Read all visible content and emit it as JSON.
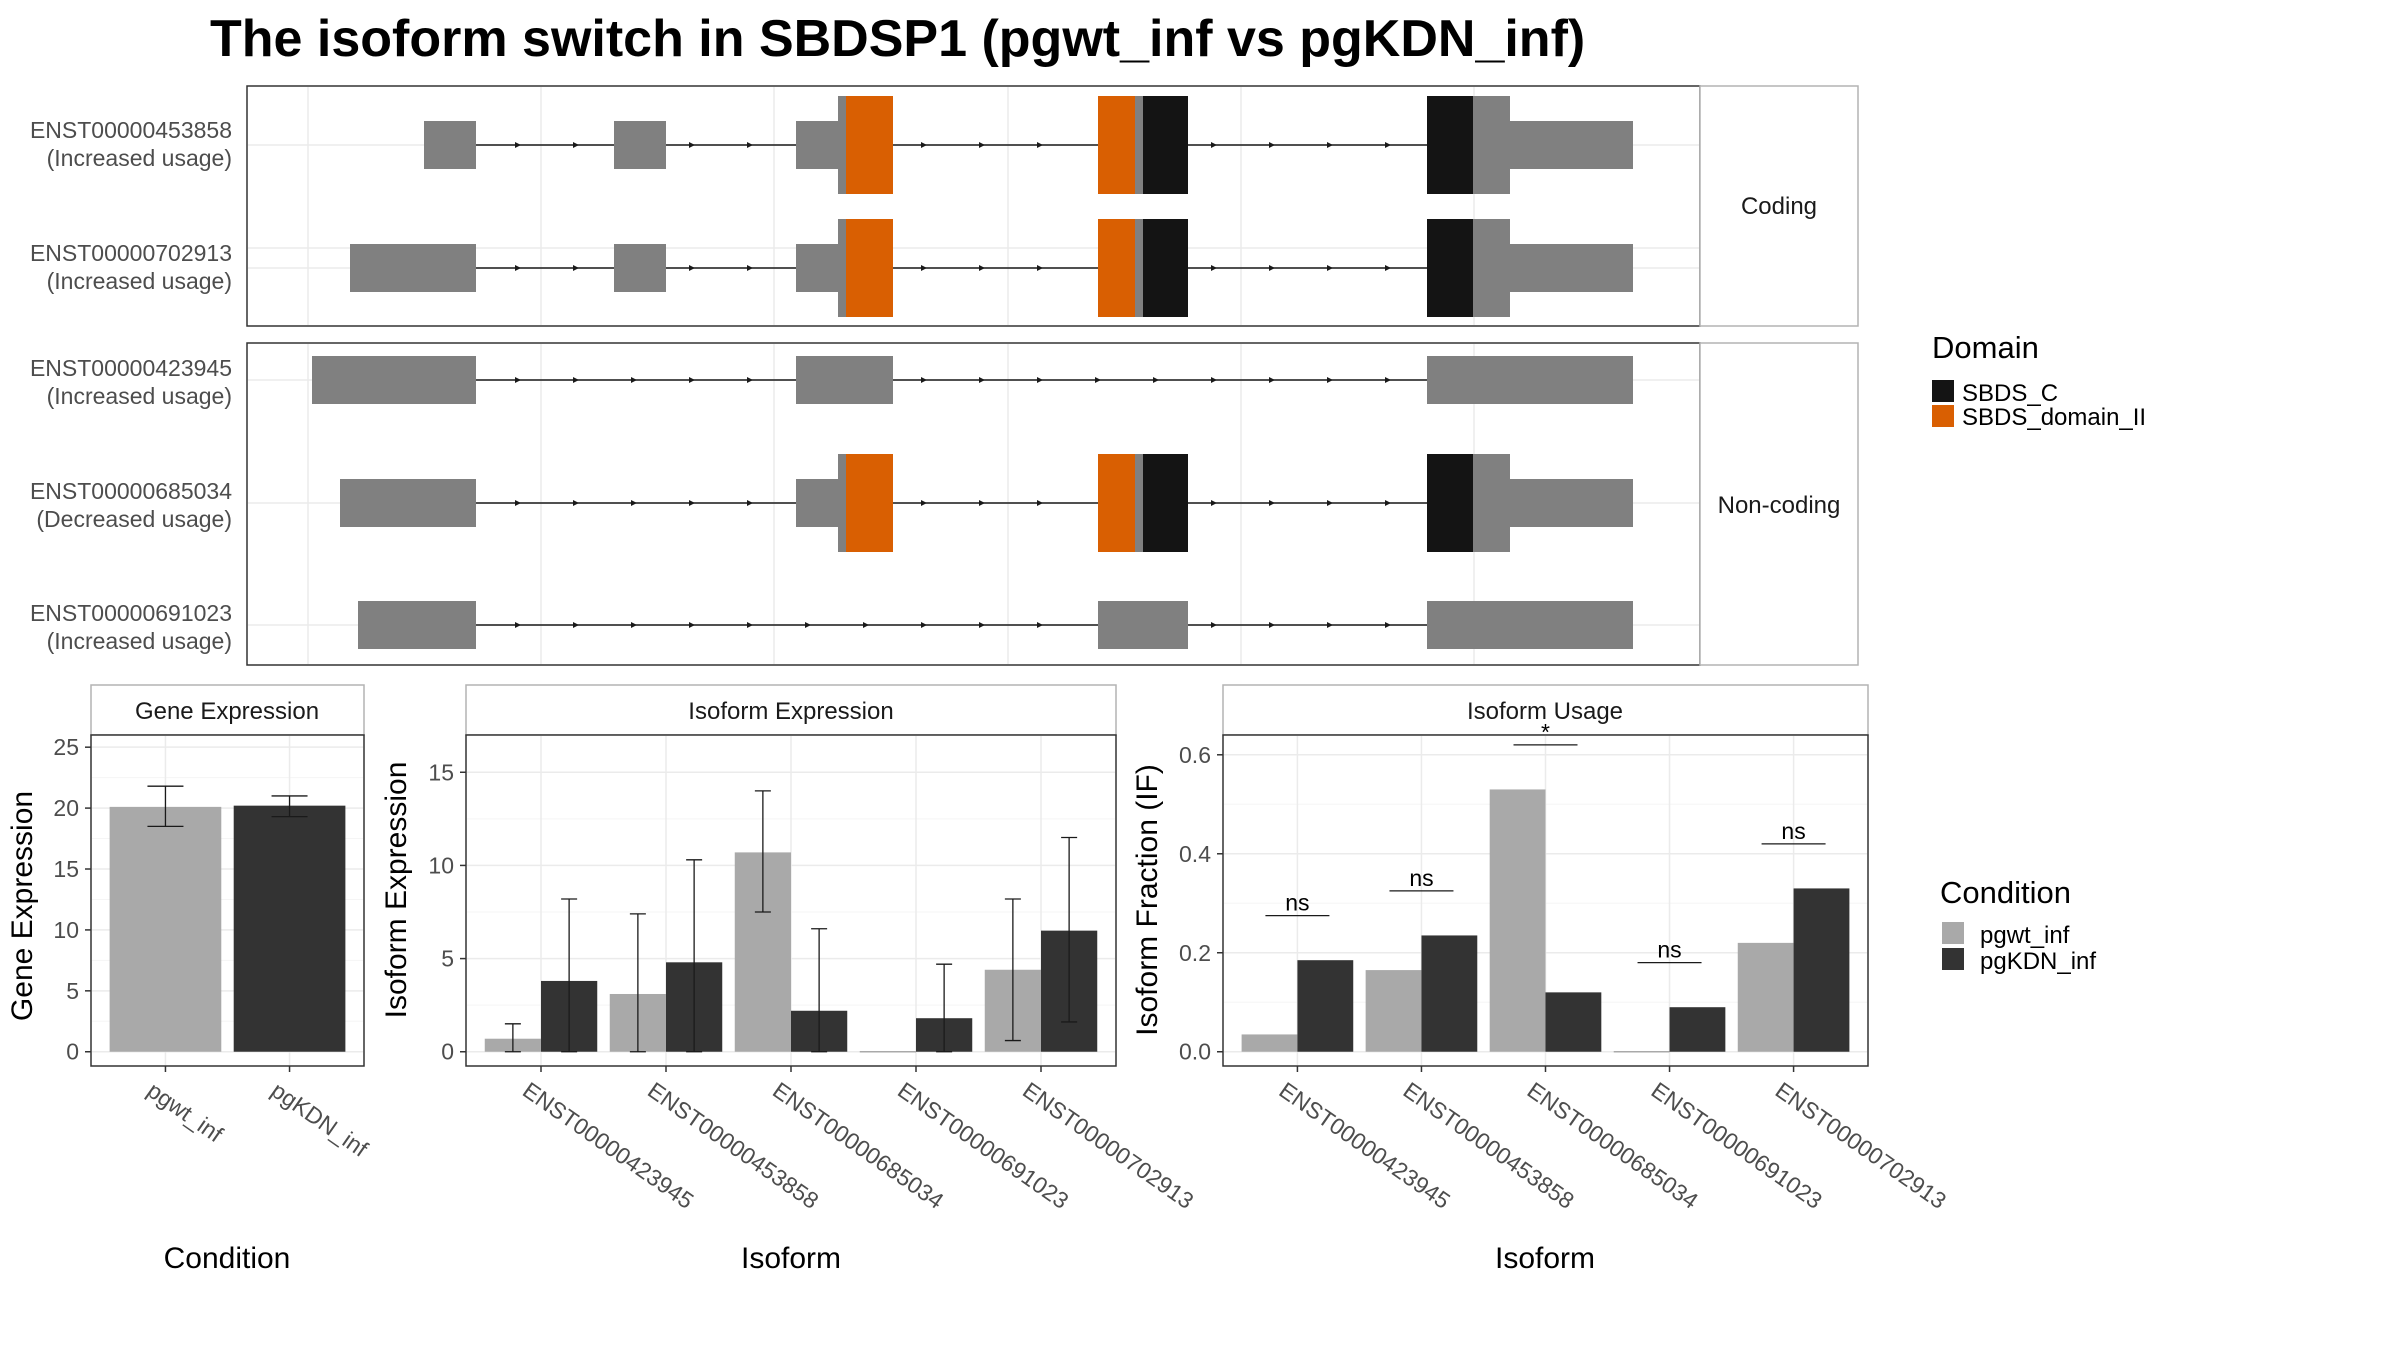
{
  "title": "The isoform switch in SBDSP1 (pgwt_inf vs pgKDN_inf)",
  "colors": {
    "exon": "#808080",
    "domain_SBDS_C": "#141414",
    "domain_SBDS_domain_II": "#D95F02",
    "pgwt_inf": "#A9A9A9",
    "pgKDN_inf": "#333333",
    "grid": "#EBEBEB",
    "panel_border": "#333333",
    "strip_border": "#B3B3B3"
  },
  "transcript_panel": {
    "groups": [
      {
        "label": "Coding",
        "transcripts": [
          {
            "id": "ENST00000453858",
            "status": "(Increased usage)"
          },
          {
            "id": "ENST00000702913",
            "status": "(Increased usage)"
          }
        ]
      },
      {
        "label": "Non-coding",
        "transcripts": [
          {
            "id": "ENST00000423945",
            "status": "(Increased usage)"
          },
          {
            "id": "ENST00000685034",
            "status": "(Decreased usage)"
          },
          {
            "id": "ENST00000691023",
            "status": "(Increased usage)"
          }
        ]
      }
    ],
    "legend_title": "Domain",
    "legend": [
      {
        "name": "SBDS_C",
        "color": "#141414"
      },
      {
        "name": "SBDS_domain_II",
        "color": "#D95F02"
      }
    ]
  },
  "chart_data": [
    {
      "type": "bar",
      "title": "Gene Expression",
      "xlabel": "Condition",
      "ylabel": "Gene Expression",
      "ylim": [
        0,
        26
      ],
      "yticks": [
        0,
        5,
        10,
        15,
        20,
        25
      ],
      "categories": [
        "pgwt_inf",
        "pgKDN_inf"
      ],
      "values": [
        20.1,
        20.2
      ],
      "error_low": [
        18.5,
        19.3
      ],
      "error_high": [
        21.8,
        21.0
      ]
    },
    {
      "type": "bar",
      "title": "Isoform Expression",
      "xlabel": "Isoform",
      "ylabel": "Isoform Expression",
      "ylim": [
        0,
        17
      ],
      "yticks": [
        0,
        5,
        10,
        15
      ],
      "categories": [
        "ENST00000423945",
        "ENST00000453858",
        "ENST00000685034",
        "ENST00000691023",
        "ENST00000702913"
      ],
      "series": [
        {
          "name": "pgwt_inf",
          "values": [
            0.7,
            3.1,
            10.7,
            0.0,
            4.4
          ],
          "error_low": [
            0.0,
            0.0,
            7.5,
            0.0,
            0.6
          ],
          "error_high": [
            1.5,
            7.4,
            14.0,
            0.0,
            8.2
          ]
        },
        {
          "name": "pgKDN_inf",
          "values": [
            3.8,
            4.8,
            2.2,
            1.8,
            6.5
          ],
          "error_low": [
            0.0,
            0.0,
            0.0,
            0.0,
            1.6
          ],
          "error_high": [
            8.2,
            10.3,
            6.6,
            4.7,
            11.5
          ]
        }
      ]
    },
    {
      "type": "bar",
      "title": "Isoform Usage",
      "xlabel": "Isoform",
      "ylabel": "Isoform Fraction (IF)",
      "ylim": [
        0,
        0.64
      ],
      "yticks": [
        0.0,
        0.2,
        0.4,
        0.6
      ],
      "categories": [
        "ENST00000423945",
        "ENST00000453858",
        "ENST00000685034",
        "ENST00000691023",
        "ENST00000702913"
      ],
      "series": [
        {
          "name": "pgwt_inf",
          "values": [
            0.035,
            0.165,
            0.53,
            0.0,
            0.22
          ]
        },
        {
          "name": "pgKDN_inf",
          "values": [
            0.185,
            0.235,
            0.12,
            0.09,
            0.33
          ]
        }
      ],
      "significance": [
        "ns",
        "ns",
        "*",
        "ns",
        "ns"
      ]
    }
  ],
  "condition_legend": {
    "title": "Condition",
    "items": [
      {
        "name": "pgwt_inf",
        "color": "#A9A9A9"
      },
      {
        "name": "pgKDN_inf",
        "color": "#333333"
      }
    ]
  }
}
